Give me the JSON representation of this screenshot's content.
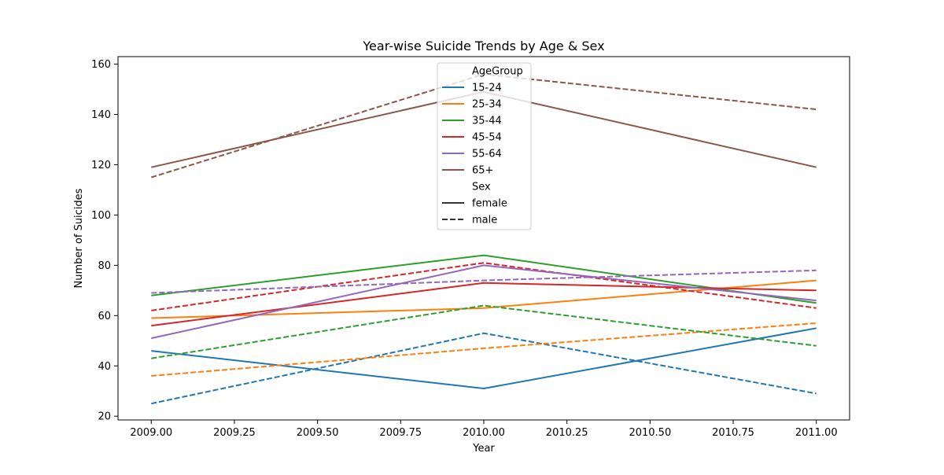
{
  "chart_data": {
    "type": "line",
    "title": "Year-wise Suicide Trends by Age & Sex",
    "xlabel": "Year",
    "ylabel": "Number of Suicides",
    "xlim": [
      2008.9,
      2011.1
    ],
    "ylim": [
      18.5,
      163
    ],
    "x": [
      2009,
      2010,
      2011
    ],
    "x_ticks": [
      2009.0,
      2009.25,
      2009.5,
      2009.75,
      2010.0,
      2010.25,
      2010.5,
      2010.75,
      2011.0
    ],
    "x_tick_labels": [
      "2009.00",
      "2009.25",
      "2009.50",
      "2009.75",
      "2010.00",
      "2010.25",
      "2010.50",
      "2010.75",
      "2011.00"
    ],
    "y_ticks": [
      20,
      40,
      60,
      80,
      100,
      120,
      140,
      160
    ],
    "y_tick_labels": [
      "20",
      "40",
      "60",
      "80",
      "100",
      "120",
      "140",
      "160"
    ],
    "grid": false,
    "legend": {
      "placement": "top-center",
      "hue_title": "AgeGroup",
      "style_title": "Sex",
      "age_groups": [
        {
          "label": "15-24",
          "color": "#1f77b4"
        },
        {
          "label": "25-34",
          "color": "#ff7f0e"
        },
        {
          "label": "35-44",
          "color": "#2ca02c"
        },
        {
          "label": "45-54",
          "color": "#d62728"
        },
        {
          "label": "55-64",
          "color": "#9467bd"
        },
        {
          "label": "65+",
          "color": "#8c564b"
        }
      ],
      "sexes": [
        {
          "label": "female",
          "dash": "solid"
        },
        {
          "label": "male",
          "dash": "dashed"
        }
      ]
    },
    "series": [
      {
        "age": "15-24",
        "sex": "female",
        "color": "#1f77b4",
        "values": [
          46,
          31,
          55
        ]
      },
      {
        "age": "15-24",
        "sex": "male",
        "color": "#1f77b4",
        "values": [
          25,
          53,
          29
        ]
      },
      {
        "age": "25-34",
        "sex": "female",
        "color": "#ff7f0e",
        "values": [
          59,
          63,
          74
        ]
      },
      {
        "age": "25-34",
        "sex": "male",
        "color": "#ff7f0e",
        "values": [
          36,
          47,
          57
        ]
      },
      {
        "age": "35-44",
        "sex": "female",
        "color": "#2ca02c",
        "values": [
          68,
          84,
          65
        ]
      },
      {
        "age": "35-44",
        "sex": "male",
        "color": "#2ca02c",
        "values": [
          43,
          64,
          48
        ]
      },
      {
        "age": "45-54",
        "sex": "female",
        "color": "#d62728",
        "values": [
          56,
          73,
          70
        ]
      },
      {
        "age": "45-54",
        "sex": "male",
        "color": "#d62728",
        "values": [
          62,
          81,
          63
        ]
      },
      {
        "age": "55-64",
        "sex": "female",
        "color": "#9467bd",
        "values": [
          51,
          80,
          66
        ]
      },
      {
        "age": "55-64",
        "sex": "male",
        "color": "#9467bd",
        "values": [
          69,
          74,
          78
        ]
      },
      {
        "age": "65+",
        "sex": "female",
        "color": "#8c564b",
        "values": [
          119,
          149,
          119
        ]
      },
      {
        "age": "65+",
        "sex": "male",
        "color": "#8c564b",
        "values": [
          115,
          156,
          142
        ]
      }
    ]
  }
}
